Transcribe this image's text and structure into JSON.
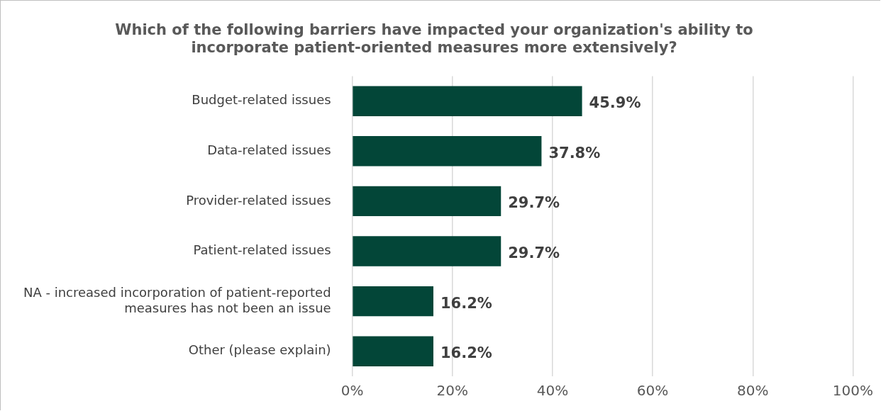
{
  "chart_data": {
    "type": "bar",
    "orientation": "horizontal",
    "title": "Which of the following barriers have impacted your organization's ability to incorporate patient-oriented measures more extensively?",
    "categories": [
      "Budget-related issues",
      "Data-related issues",
      "Provider-related issues",
      "Patient-related issues",
      "NA - increased incorporation of patient-reported measures has not been an issue",
      "Other (please explain)"
    ],
    "values": [
      45.9,
      37.8,
      29.7,
      29.7,
      16.2,
      16.2
    ],
    "value_labels": [
      "45.9%",
      "37.8%",
      "29.7%",
      "29.7%",
      "16.2%",
      "16.2%"
    ],
    "color": "#034638",
    "xlim": [
      0,
      100
    ],
    "xticks": [
      {
        "value": 0,
        "label": "0%"
      },
      {
        "value": 20,
        "label": "20%"
      },
      {
        "value": 40,
        "label": "40%"
      },
      {
        "value": 60,
        "label": "60%"
      },
      {
        "value": 80,
        "label": "80%"
      },
      {
        "value": 100,
        "label": "100%"
      }
    ],
    "grid": "x",
    "legend": false
  }
}
